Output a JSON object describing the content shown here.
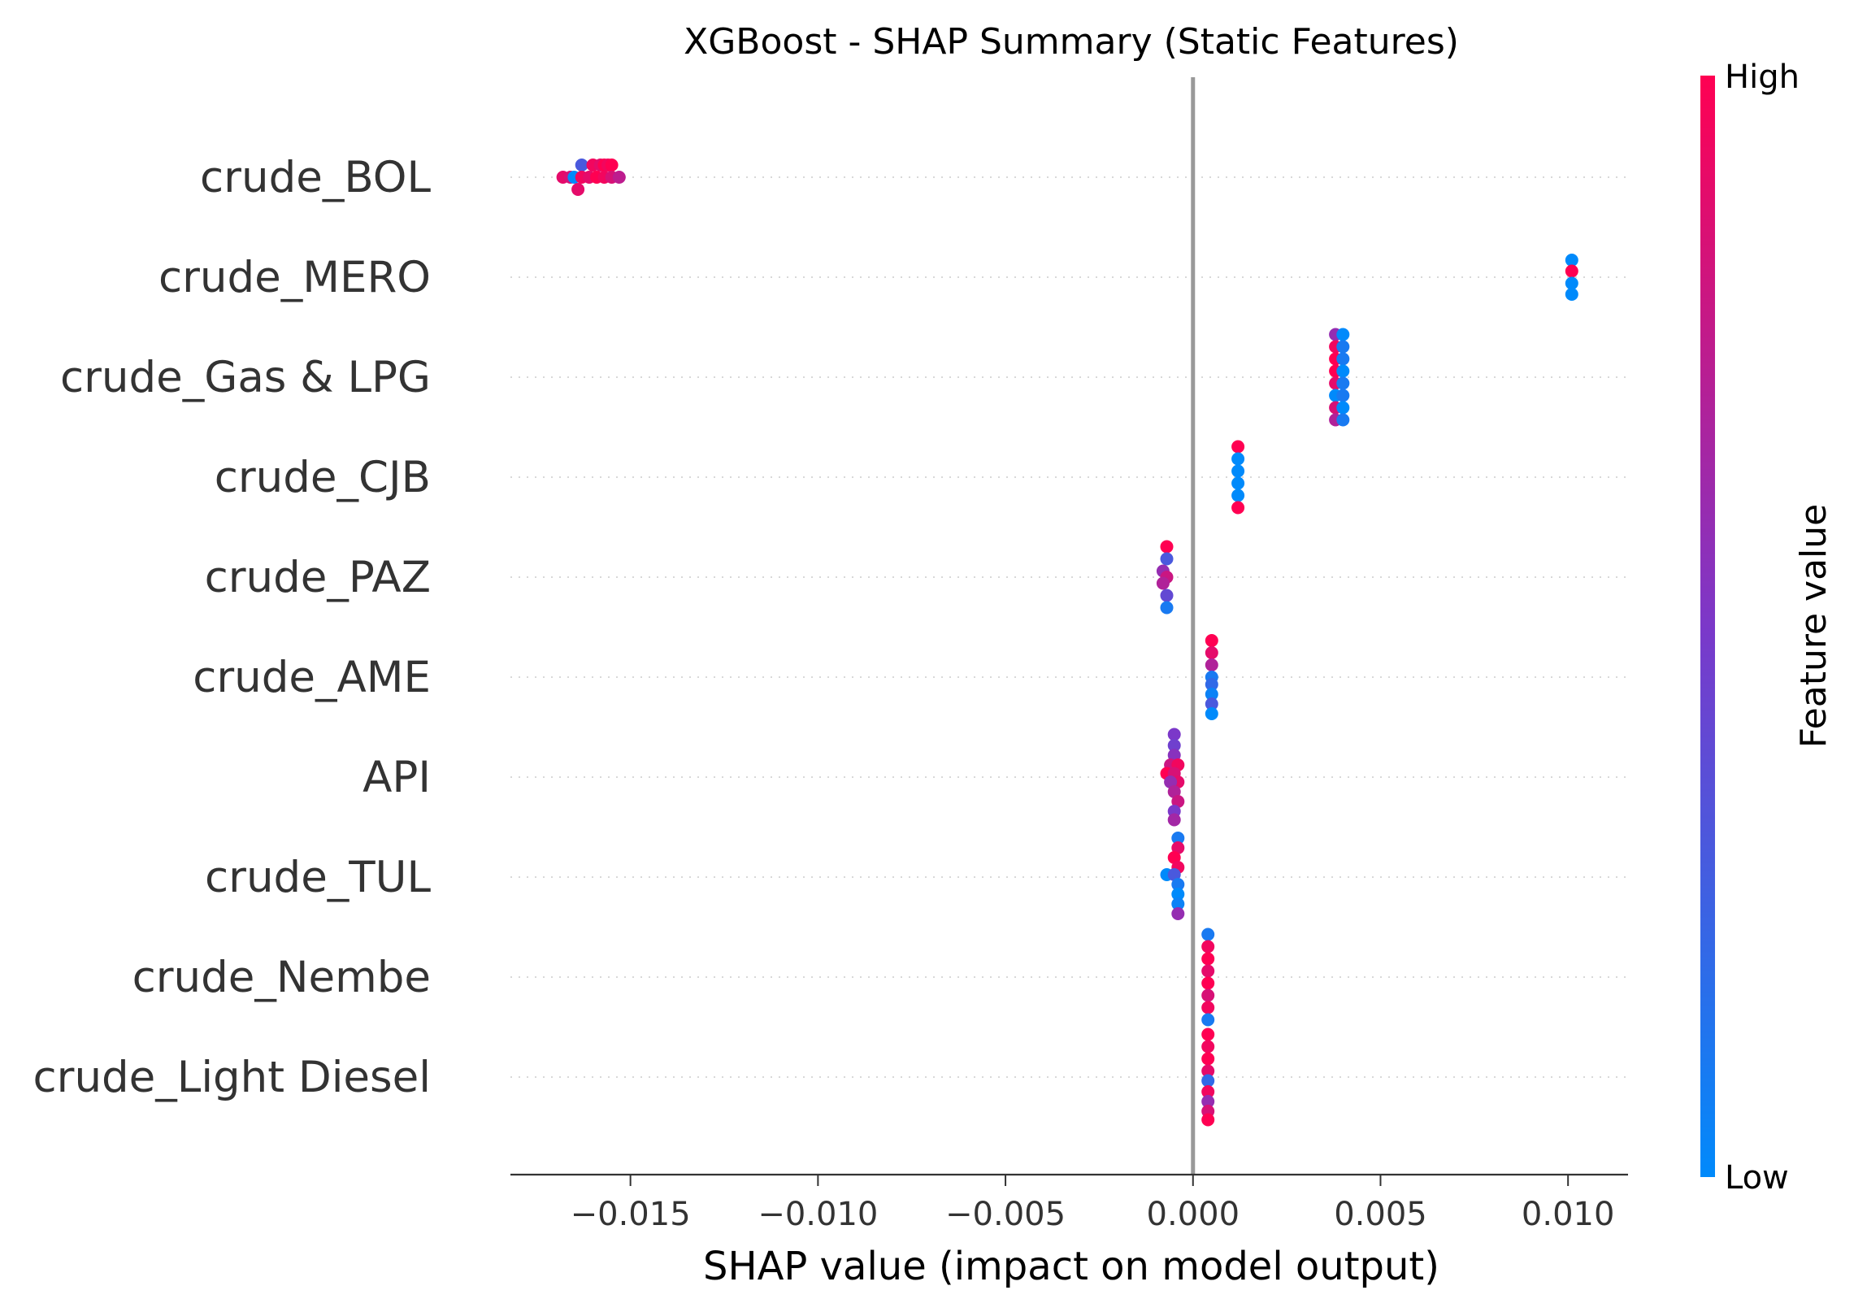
{
  "chart_data": {
    "type": "scatter",
    "title": "XGBoost - SHAP Summary (Static Features)",
    "xlabel": "SHAP value (impact on model output)",
    "xlim": [
      -0.0182,
      0.0116
    ],
    "xticks": [
      -0.015,
      -0.01,
      -0.005,
      0.0,
      0.005,
      0.01
    ],
    "xtick_labels": [
      "−0.015",
      "−0.010",
      "−0.005",
      "0.000",
      "0.005",
      "0.010"
    ],
    "zero_line": true,
    "row_gridlines": "dotted",
    "colorbar": {
      "label": "Feature value",
      "high": "High",
      "low": "Low",
      "low_color": "#008afb",
      "mid_color": "#7b38c9",
      "high_color": "#ff0052"
    },
    "features": [
      {
        "name": "crude_BOL",
        "points": [
          {
            "x": -0.0163,
            "v": 0.3,
            "lane": -1
          },
          {
            "x": -0.016,
            "v": 0.95,
            "lane": -1
          },
          {
            "x": -0.0158,
            "v": 0.9,
            "lane": -1
          },
          {
            "x": -0.0157,
            "v": 1.0,
            "lane": -1
          },
          {
            "x": -0.0156,
            "v": 0.95,
            "lane": -1
          },
          {
            "x": -0.0155,
            "v": 1.0,
            "lane": -1
          },
          {
            "x": -0.0168,
            "v": 0.9,
            "lane": 0
          },
          {
            "x": -0.0166,
            "v": 0.85,
            "lane": 0
          },
          {
            "x": -0.0165,
            "v": 0.0,
            "lane": 0
          },
          {
            "x": -0.0163,
            "v": 0.95,
            "lane": 0
          },
          {
            "x": -0.0161,
            "v": 0.9,
            "lane": 0
          },
          {
            "x": -0.0159,
            "v": 1.0,
            "lane": 0
          },
          {
            "x": -0.0157,
            "v": 0.95,
            "lane": 0
          },
          {
            "x": -0.0155,
            "v": 0.85,
            "lane": 0
          },
          {
            "x": -0.0153,
            "v": 0.75,
            "lane": 0
          },
          {
            "x": -0.0164,
            "v": 0.9,
            "lane": 1
          }
        ]
      },
      {
        "name": "crude_MERO",
        "points": [
          {
            "x": 0.0101,
            "v": 0.0,
            "lane": -1.4
          },
          {
            "x": 0.0101,
            "v": 1.0,
            "lane": -0.5
          },
          {
            "x": 0.0101,
            "v": 0.0,
            "lane": 0.5
          },
          {
            "x": 0.0101,
            "v": 0.0,
            "lane": 1.4
          }
        ]
      },
      {
        "name": "crude_Gas & LPG",
        "points": [
          {
            "x": 0.0038,
            "v": 0.6,
            "lane": -3.5
          },
          {
            "x": 0.004,
            "v": 0.0,
            "lane": -3.5
          },
          {
            "x": 0.0038,
            "v": 0.95,
            "lane": -2.5
          },
          {
            "x": 0.004,
            "v": 0.1,
            "lane": -2.5
          },
          {
            "x": 0.0038,
            "v": 1.0,
            "lane": -1.5
          },
          {
            "x": 0.004,
            "v": 0.1,
            "lane": -1.5
          },
          {
            "x": 0.0038,
            "v": 1.0,
            "lane": -0.5
          },
          {
            "x": 0.004,
            "v": 0.0,
            "lane": -0.5
          },
          {
            "x": 0.0038,
            "v": 0.9,
            "lane": 0.5
          },
          {
            "x": 0.004,
            "v": 0.1,
            "lane": 0.5
          },
          {
            "x": 0.0038,
            "v": 0.0,
            "lane": 1.5
          },
          {
            "x": 0.004,
            "v": 0.1,
            "lane": 1.5
          },
          {
            "x": 0.0038,
            "v": 0.85,
            "lane": 2.5
          },
          {
            "x": 0.004,
            "v": 0.0,
            "lane": 2.5
          },
          {
            "x": 0.0038,
            "v": 0.7,
            "lane": 3.5
          },
          {
            "x": 0.004,
            "v": 0.1,
            "lane": 3.5
          }
        ]
      },
      {
        "name": "crude_CJB",
        "points": [
          {
            "x": 0.0012,
            "v": 1.0,
            "lane": -2.5
          },
          {
            "x": 0.0012,
            "v": 0.0,
            "lane": -1.5
          },
          {
            "x": 0.0012,
            "v": 0.0,
            "lane": -0.5
          },
          {
            "x": 0.0012,
            "v": 0.0,
            "lane": 0.5
          },
          {
            "x": 0.0012,
            "v": 0.0,
            "lane": 1.5
          },
          {
            "x": 0.0012,
            "v": 1.0,
            "lane": 2.5
          }
        ]
      },
      {
        "name": "crude_PAZ",
        "points": [
          {
            "x": -0.0007,
            "v": 1.0,
            "lane": -2.5
          },
          {
            "x": -0.0007,
            "v": 0.3,
            "lane": -1.5
          },
          {
            "x": -0.0008,
            "v": 0.6,
            "lane": -0.5
          },
          {
            "x": -0.0007,
            "v": 0.8,
            "lane": 0
          },
          {
            "x": -0.0008,
            "v": 0.7,
            "lane": 0.5
          },
          {
            "x": -0.0007,
            "v": 0.4,
            "lane": 1.5
          },
          {
            "x": -0.0007,
            "v": 0.1,
            "lane": 2.5
          }
        ]
      },
      {
        "name": "crude_AME",
        "points": [
          {
            "x": 0.0005,
            "v": 1.0,
            "lane": -3
          },
          {
            "x": 0.0005,
            "v": 0.9,
            "lane": -2
          },
          {
            "x": 0.0005,
            "v": 0.7,
            "lane": -1
          },
          {
            "x": 0.0005,
            "v": 0.1,
            "lane": 0
          },
          {
            "x": 0.0005,
            "v": 0.2,
            "lane": 0.6
          },
          {
            "x": 0.0005,
            "v": 0.05,
            "lane": 1.4
          },
          {
            "x": 0.0005,
            "v": 0.3,
            "lane": 2.2
          },
          {
            "x": 0.0005,
            "v": 0.0,
            "lane": 3
          }
        ]
      },
      {
        "name": "API",
        "points": [
          {
            "x": -0.0005,
            "v": 0.5,
            "lane": -3.5
          },
          {
            "x": -0.0005,
            "v": 0.45,
            "lane": -2.6
          },
          {
            "x": -0.0005,
            "v": 0.55,
            "lane": -1.8
          },
          {
            "x": -0.0006,
            "v": 0.8,
            "lane": -1.0
          },
          {
            "x": -0.0004,
            "v": 0.95,
            "lane": -1.0
          },
          {
            "x": -0.0007,
            "v": 1.0,
            "lane": -0.3
          },
          {
            "x": -0.0005,
            "v": 0.85,
            "lane": -0.3
          },
          {
            "x": -0.0004,
            "v": 0.9,
            "lane": 0.4
          },
          {
            "x": -0.0006,
            "v": 0.6,
            "lane": 0.4
          },
          {
            "x": -0.0005,
            "v": 0.7,
            "lane": 1.2
          },
          {
            "x": -0.0004,
            "v": 0.8,
            "lane": 2.0
          },
          {
            "x": -0.0005,
            "v": 0.5,
            "lane": 2.8
          },
          {
            "x": -0.0005,
            "v": 0.65,
            "lane": 3.5
          }
        ]
      },
      {
        "name": "crude_TUL",
        "points": [
          {
            "x": -0.0004,
            "v": 0.1,
            "lane": -3.2
          },
          {
            "x": -0.0004,
            "v": 0.9,
            "lane": -2.4
          },
          {
            "x": -0.0005,
            "v": 1.0,
            "lane": -1.6
          },
          {
            "x": -0.0004,
            "v": 0.95,
            "lane": -0.8
          },
          {
            "x": -0.0007,
            "v": 0.0,
            "lane": -0.2
          },
          {
            "x": -0.0005,
            "v": 0.3,
            "lane": -0.2
          },
          {
            "x": -0.0004,
            "v": 0.1,
            "lane": 0.6
          },
          {
            "x": -0.0004,
            "v": 0.0,
            "lane": 1.4
          },
          {
            "x": -0.0004,
            "v": 0.05,
            "lane": 2.2
          },
          {
            "x": -0.0004,
            "v": 0.6,
            "lane": 3.0
          }
        ]
      },
      {
        "name": "crude_Nembe",
        "points": [
          {
            "x": 0.0004,
            "v": 0.1,
            "lane": -3.5
          },
          {
            "x": 0.0004,
            "v": 0.95,
            "lane": -2.5
          },
          {
            "x": 0.0004,
            "v": 1.0,
            "lane": -1.5
          },
          {
            "x": 0.0004,
            "v": 0.9,
            "lane": -0.5
          },
          {
            "x": 0.0004,
            "v": 1.0,
            "lane": 0.5
          },
          {
            "x": 0.0004,
            "v": 0.85,
            "lane": 1.5
          },
          {
            "x": 0.0004,
            "v": 0.95,
            "lane": 2.5
          },
          {
            "x": 0.0004,
            "v": 0.1,
            "lane": 3.5
          }
        ]
      },
      {
        "name": "crude_Light Diesel",
        "points": [
          {
            "x": 0.0004,
            "v": 1.0,
            "lane": -3.5
          },
          {
            "x": 0.0004,
            "v": 0.95,
            "lane": -2.5
          },
          {
            "x": 0.0004,
            "v": 1.0,
            "lane": -1.5
          },
          {
            "x": 0.0004,
            "v": 0.9,
            "lane": -0.5
          },
          {
            "x": 0.0004,
            "v": 0.2,
            "lane": 0.3
          },
          {
            "x": 0.0004,
            "v": 0.95,
            "lane": 1.2
          },
          {
            "x": 0.0004,
            "v": 0.6,
            "lane": 2.0
          },
          {
            "x": 0.0004,
            "v": 0.85,
            "lane": 2.8
          },
          {
            "x": 0.0004,
            "v": 1.0,
            "lane": 3.5
          }
        ]
      }
    ]
  }
}
